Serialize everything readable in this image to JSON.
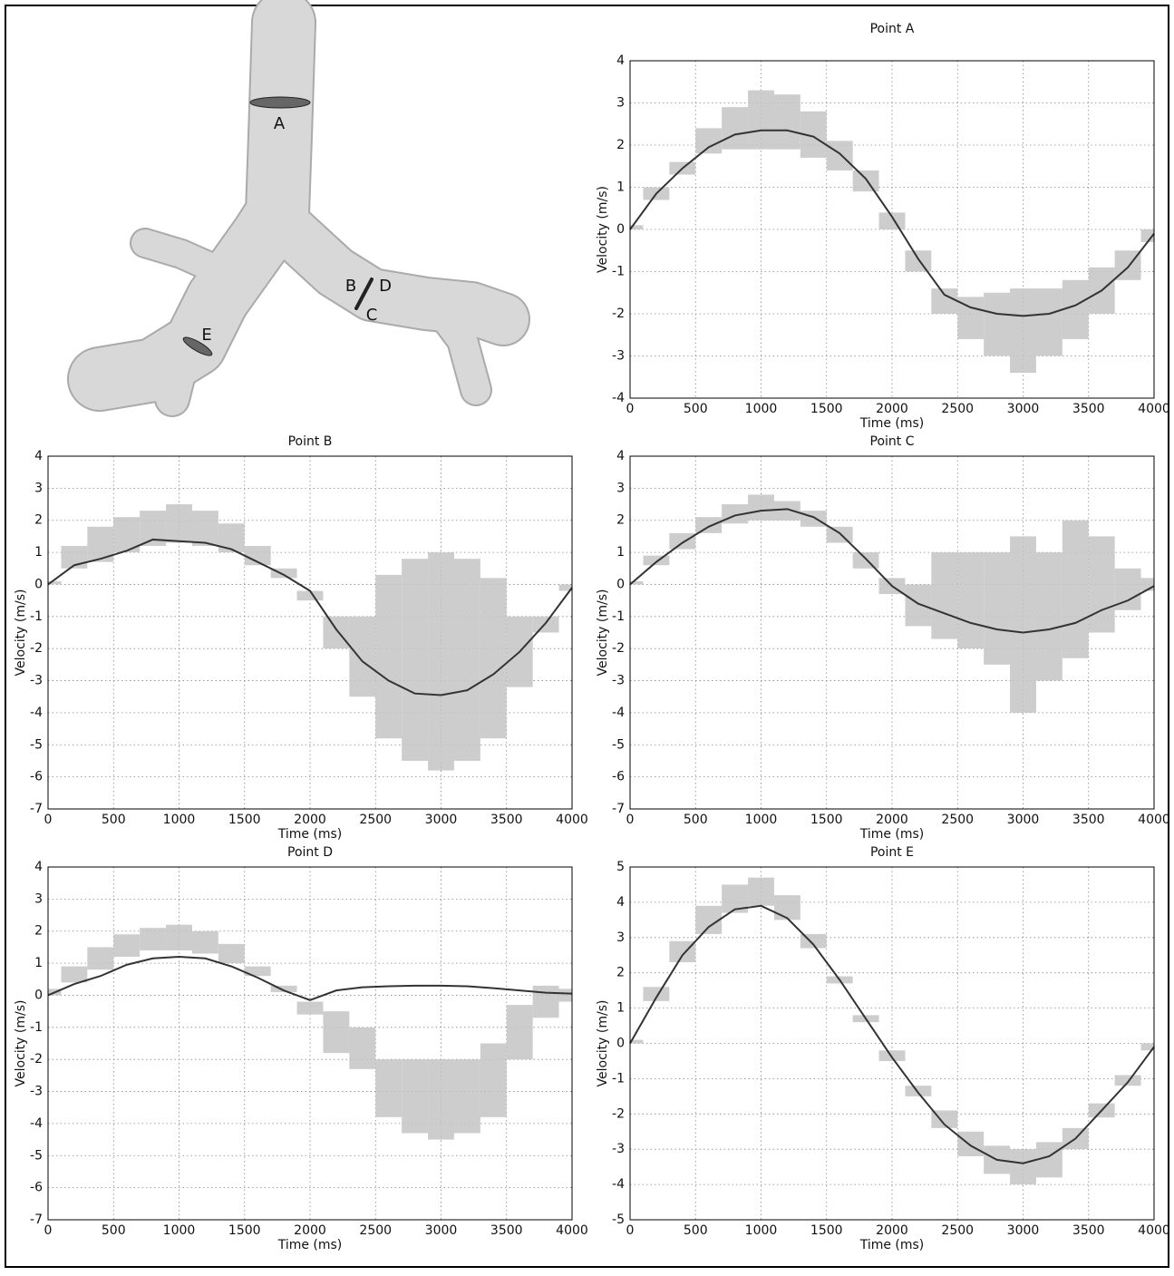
{
  "diagram": {
    "labels": [
      "A",
      "B",
      "C",
      "D",
      "E"
    ]
  },
  "chart_data": [
    {
      "type": "line",
      "title": "Point A",
      "x_label": "Time (ms)",
      "y_label": "Velocity (m/s)",
      "x": [
        0,
        200,
        400,
        600,
        800,
        1000,
        1200,
        1400,
        1600,
        1800,
        2000,
        2200,
        2400,
        2600,
        2800,
        3000,
        3200,
        3400,
        3600,
        3800,
        4000
      ],
      "xlim": [
        0,
        4000
      ],
      "xticks": [
        0,
        500,
        1000,
        1500,
        2000,
        2500,
        3000,
        3500,
        4000
      ],
      "ylim": [
        -4,
        4
      ],
      "yticks": [
        -4,
        -3,
        -2,
        -1,
        0,
        1,
        2,
        3,
        4
      ],
      "grid": true,
      "series": [
        {
          "type": "range",
          "color": "#c4c4c4",
          "low": [
            0,
            0.7,
            1.3,
            1.8,
            1.9,
            1.9,
            1.9,
            1.7,
            1.4,
            0.9,
            0.0,
            -1.0,
            -2.0,
            -2.6,
            -3.0,
            -3.4,
            -3.0,
            -2.6,
            -2.0,
            -1.2,
            -0.3
          ],
          "high": [
            0.1,
            1.0,
            1.6,
            2.4,
            2.9,
            3.3,
            3.2,
            2.8,
            2.1,
            1.4,
            0.4,
            -0.5,
            -1.4,
            -1.6,
            -1.5,
            -1.4,
            -1.4,
            -1.2,
            -0.9,
            -0.5,
            0.0
          ]
        },
        {
          "type": "line",
          "color": "#333333",
          "values": [
            0,
            0.85,
            1.45,
            1.95,
            2.25,
            2.35,
            2.35,
            2.2,
            1.8,
            1.2,
            0.3,
            -0.7,
            -1.55,
            -1.85,
            -2.0,
            -2.05,
            -2.0,
            -1.8,
            -1.45,
            -0.9,
            -0.1
          ]
        }
      ]
    },
    {
      "type": "line",
      "title": "Point B",
      "x_label": "Time (ms)",
      "y_label": "Velocity (m/s)",
      "x": [
        0,
        200,
        400,
        600,
        800,
        1000,
        1200,
        1400,
        1600,
        1800,
        2000,
        2200,
        2400,
        2600,
        2800,
        3000,
        3200,
        3400,
        3600,
        3800,
        4000
      ],
      "xlim": [
        0,
        4000
      ],
      "xticks": [
        0,
        500,
        1000,
        1500,
        2000,
        2500,
        3000,
        3500,
        4000
      ],
      "ylim": [
        -7,
        4
      ],
      "yticks": [
        -7,
        -6,
        -5,
        -4,
        -3,
        -2,
        -1,
        0,
        1,
        2,
        3,
        4
      ],
      "grid": true,
      "series": [
        {
          "type": "range",
          "color": "#c4c4c4",
          "low": [
            0,
            0.5,
            0.7,
            1.0,
            1.2,
            1.3,
            1.2,
            1.0,
            0.6,
            0.2,
            -0.5,
            -2.0,
            -3.5,
            -4.8,
            -5.5,
            -5.8,
            -5.5,
            -4.8,
            -3.2,
            -1.5,
            -0.2
          ],
          "high": [
            0.1,
            1.2,
            1.8,
            2.1,
            2.3,
            2.5,
            2.3,
            1.9,
            1.2,
            0.5,
            -0.2,
            -1.0,
            -1.0,
            0.3,
            0.8,
            1.0,
            0.8,
            0.2,
            -1.0,
            -1.0,
            0.0
          ]
        },
        {
          "type": "line",
          "color": "#333333",
          "values": [
            0,
            0.6,
            0.8,
            1.05,
            1.4,
            1.35,
            1.3,
            1.1,
            0.7,
            0.3,
            -0.2,
            -1.4,
            -2.4,
            -3.0,
            -3.4,
            -3.45,
            -3.3,
            -2.8,
            -2.1,
            -1.2,
            -0.1
          ]
        }
      ]
    },
    {
      "type": "line",
      "title": "Point C",
      "x_label": "Time (ms)",
      "y_label": "Velocity (m/s)",
      "x": [
        0,
        200,
        400,
        600,
        800,
        1000,
        1200,
        1400,
        1600,
        1800,
        2000,
        2200,
        2400,
        2600,
        2800,
        3000,
        3200,
        3400,
        3600,
        3800,
        4000
      ],
      "xlim": [
        0,
        4000
      ],
      "xticks": [
        0,
        500,
        1000,
        1500,
        2000,
        2500,
        3000,
        3500,
        4000
      ],
      "ylim": [
        -7,
        4
      ],
      "yticks": [
        -7,
        -6,
        -5,
        -4,
        -3,
        -2,
        -1,
        0,
        1,
        2,
        3,
        4
      ],
      "grid": true,
      "series": [
        {
          "type": "range",
          "color": "#c4c4c4",
          "low": [
            0,
            0.6,
            1.1,
            1.6,
            1.9,
            2.0,
            2.0,
            1.8,
            1.3,
            0.5,
            -0.3,
            -1.3,
            -1.7,
            -2.0,
            -2.5,
            -4.0,
            -3.0,
            -2.3,
            -1.5,
            -0.8,
            -0.2
          ],
          "high": [
            0.1,
            0.9,
            1.6,
            2.1,
            2.5,
            2.8,
            2.6,
            2.3,
            1.8,
            1.0,
            0.2,
            0.0,
            1.0,
            1.0,
            1.0,
            1.5,
            1.0,
            2.0,
            1.5,
            0.5,
            0.2
          ]
        },
        {
          "type": "line",
          "color": "#333333",
          "values": [
            0,
            0.7,
            1.3,
            1.8,
            2.15,
            2.3,
            2.35,
            2.1,
            1.6,
            0.8,
            -0.05,
            -0.6,
            -0.9,
            -1.2,
            -1.4,
            -1.5,
            -1.4,
            -1.2,
            -0.8,
            -0.5,
            -0.05
          ]
        }
      ]
    },
    {
      "type": "line",
      "title": "Point D",
      "x_label": "Time (ms)",
      "y_label": "Velocity (m/s)",
      "x": [
        0,
        200,
        400,
        600,
        800,
        1000,
        1200,
        1400,
        1600,
        1800,
        2000,
        2200,
        2400,
        2600,
        2800,
        3000,
        3200,
        3400,
        3600,
        3800,
        4000
      ],
      "xlim": [
        0,
        4000
      ],
      "xticks": [
        0,
        500,
        1000,
        1500,
        2000,
        2500,
        3000,
        3500,
        4000
      ],
      "ylim": [
        -7,
        4
      ],
      "yticks": [
        -7,
        -6,
        -5,
        -4,
        -3,
        -2,
        -1,
        0,
        1,
        2,
        3,
        4
      ],
      "grid": true,
      "series": [
        {
          "type": "range",
          "color": "#c4c4c4",
          "low": [
            0,
            0.4,
            0.8,
            1.2,
            1.4,
            1.4,
            1.3,
            1.0,
            0.6,
            0.1,
            -0.6,
            -1.8,
            -2.3,
            -3.8,
            -4.3,
            -4.5,
            -4.3,
            -3.8,
            -2.0,
            -0.7,
            -0.2
          ],
          "high": [
            0.2,
            0.9,
            1.5,
            1.9,
            2.1,
            2.2,
            2.0,
            1.6,
            0.9,
            0.3,
            -0.2,
            -0.5,
            -1.0,
            -2.0,
            -2.0,
            -2.0,
            -2.0,
            -1.5,
            -0.3,
            0.3,
            0.2
          ]
        },
        {
          "type": "line",
          "color": "#333333",
          "values": [
            0,
            0.35,
            0.6,
            0.95,
            1.15,
            1.2,
            1.15,
            0.9,
            0.55,
            0.15,
            -0.15,
            0.15,
            0.25,
            0.28,
            0.3,
            0.3,
            0.28,
            0.22,
            0.15,
            0.08,
            0.05
          ]
        }
      ]
    },
    {
      "type": "line",
      "title": "Point E",
      "x_label": "Time (ms)",
      "y_label": "Velocity (m/s)",
      "x": [
        0,
        200,
        400,
        600,
        800,
        1000,
        1200,
        1400,
        1600,
        1800,
        2000,
        2200,
        2400,
        2600,
        2800,
        3000,
        3200,
        3400,
        3600,
        3800,
        4000
      ],
      "xlim": [
        0,
        4000
      ],
      "xticks": [
        0,
        500,
        1000,
        1500,
        2000,
        2500,
        3000,
        3500,
        4000
      ],
      "ylim": [
        -5,
        5
      ],
      "yticks": [
        -5,
        -4,
        -3,
        -2,
        -1,
        0,
        1,
        2,
        3,
        4,
        5
      ],
      "grid": true,
      "series": [
        {
          "type": "range",
          "color": "#c4c4c4",
          "low": [
            0,
            1.2,
            2.3,
            3.1,
            3.7,
            3.9,
            3.5,
            2.7,
            1.7,
            0.6,
            -0.5,
            -1.5,
            -2.4,
            -3.2,
            -3.7,
            -4.0,
            -3.8,
            -3.0,
            -2.1,
            -1.2,
            -0.2
          ],
          "high": [
            0.1,
            1.6,
            2.9,
            3.9,
            4.5,
            4.7,
            4.2,
            3.1,
            1.9,
            0.8,
            -0.2,
            -1.2,
            -1.9,
            -2.5,
            -2.9,
            -3.0,
            -2.8,
            -2.4,
            -1.7,
            -0.9,
            0.0
          ]
        },
        {
          "type": "line",
          "color": "#333333",
          "values": [
            0,
            1.3,
            2.5,
            3.3,
            3.8,
            3.9,
            3.55,
            2.8,
            1.8,
            0.7,
            -0.4,
            -1.4,
            -2.3,
            -2.9,
            -3.3,
            -3.4,
            -3.2,
            -2.7,
            -1.9,
            -1.1,
            -0.1
          ]
        }
      ]
    }
  ]
}
